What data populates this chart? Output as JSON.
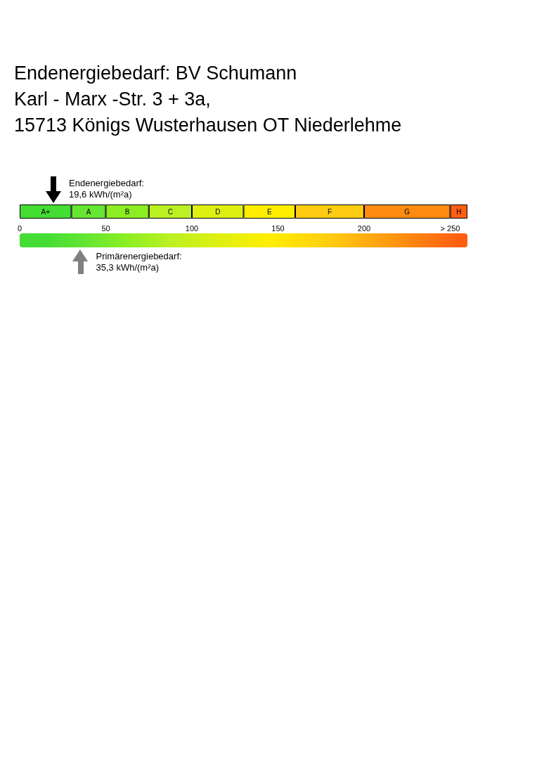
{
  "chart_data": {
    "type": "bar",
    "orientation": "horizontal",
    "stacked": true,
    "title": "Endenergiebedarf: BV Schumann\nKarl - Marx -Str. 3 + 3a,\n15713 Königs Wusterhausen OT Niederlehme",
    "categories": [
      null
    ],
    "xlim": [
      0,
      260
    ],
    "xticks": [
      0,
      50,
      100,
      150,
      200,
      {
        "value": 250,
        "label": "> 250"
      }
    ],
    "series": [
      {
        "name": "A+",
        "color": "#44dd33",
        "values": [
          30
        ]
      },
      {
        "name": "A",
        "color": "#66e633",
        "values": [
          20
        ]
      },
      {
        "name": "B",
        "color": "#8cee22",
        "values": [
          25
        ]
      },
      {
        "name": "C",
        "color": "#bbf022",
        "values": [
          25
        ]
      },
      {
        "name": "D",
        "color": "#ddf011",
        "values": [
          30
        ]
      },
      {
        "name": "E",
        "color": "#ffee00",
        "values": [
          30
        ]
      },
      {
        "name": "F",
        "color": "#ffcc11",
        "values": [
          40
        ]
      },
      {
        "name": "G",
        "color": "#ff8a11",
        "values": [
          50
        ]
      },
      {
        "name": "H",
        "color": "#ff5e11",
        "values": [
          10
        ]
      }
    ],
    "ref_lines": [
      {
        "axis": "x",
        "value": 19.6,
        "label": "Endenergiebedarf:\n19,6 kWh/(m²a)",
        "color": "#000000"
      },
      {
        "axis": "x",
        "value": 35.3,
        "label": "Primärenergiebedarf:\n35,3 kWh/(m²a)",
        "color": "#808080"
      }
    ],
    "grid": false,
    "legend": false
  }
}
